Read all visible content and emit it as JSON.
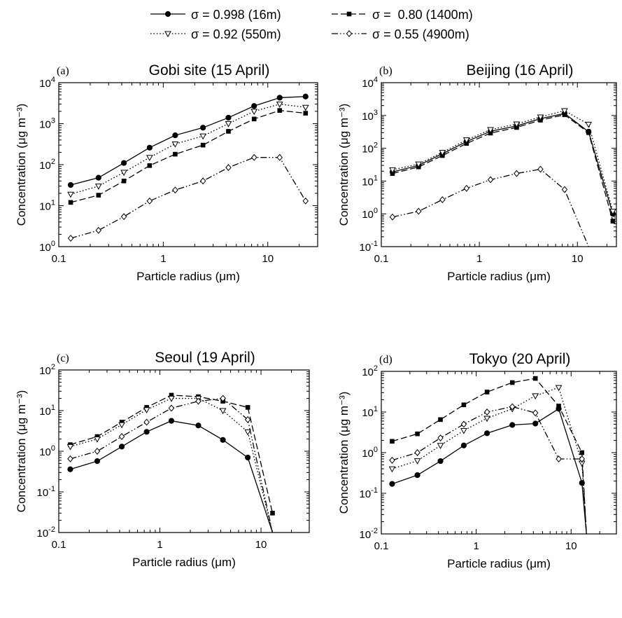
{
  "legend": {
    "entries": [
      {
        "series_index": 0,
        "label": "σ = 0.998 (16m)"
      },
      {
        "series_index": 1,
        "label": "σ =  0.80 (1400m)"
      },
      {
        "series_index": 2,
        "label": "σ = 0.92 (550m)"
      },
      {
        "series_index": 3,
        "label": "σ = 0.55 (4900m)"
      }
    ]
  },
  "series_styles": [
    {
      "marker": "circle-filled",
      "dash": "solid",
      "color": "#000000"
    },
    {
      "marker": "square-filled",
      "dash": "dashed",
      "color": "#000000"
    },
    {
      "marker": "triangle-down-open",
      "dash": "dotted",
      "color": "#000000"
    },
    {
      "marker": "diamond-open",
      "dash": "dash-dot-dot",
      "color": "#000000"
    }
  ],
  "chart_data": [
    {
      "panel_label": "(a)",
      "title": "Gobi site (15 April)",
      "type": "line",
      "xlabel": "Particle radius (μm)",
      "ylabel": "Concentration (μg m⁻³)",
      "xscale": "log",
      "yscale": "log",
      "xlim": [
        0.1,
        30
      ],
      "ylim": [
        1,
        10000
      ],
      "xticks": [
        {
          "v": 0.1,
          "label": "0.1"
        },
        {
          "v": 1,
          "label": "1"
        },
        {
          "v": 10,
          "label": "10"
        }
      ],
      "yticks": [
        {
          "v": 1,
          "base": "10",
          "exp": "0"
        },
        {
          "v": 10,
          "base": "10",
          "exp": "1"
        },
        {
          "v": 100,
          "base": "10",
          "exp": "2"
        },
        {
          "v": 1000,
          "base": "10",
          "exp": "3"
        },
        {
          "v": 10000,
          "base": "10",
          "exp": "4"
        }
      ],
      "x": [
        0.13,
        0.24,
        0.42,
        0.74,
        1.3,
        2.4,
        4.2,
        7.4,
        13,
        23
      ],
      "series": [
        {
          "values": [
            32,
            48,
            110,
            260,
            520,
            800,
            1400,
            2700,
            4300,
            4600
          ]
        },
        {
          "values": [
            12,
            18,
            40,
            95,
            180,
            300,
            650,
            1300,
            2100,
            1800
          ]
        },
        {
          "values": [
            19,
            30,
            65,
            150,
            320,
            500,
            1000,
            2000,
            3000,
            2500
          ]
        },
        {
          "values": [
            1.6,
            2.5,
            5.4,
            13,
            24,
            40,
            85,
            150,
            150,
            13
          ]
        }
      ]
    },
    {
      "panel_label": "(b)",
      "title": "Beijing (16 April)",
      "type": "line",
      "xlabel": "Particle radius (μm)",
      "ylabel": "Concentration (μg m⁻³)",
      "xscale": "log",
      "yscale": "log",
      "xlim": [
        0.1,
        25
      ],
      "ylim": [
        0.1,
        10000
      ],
      "xticks": [
        {
          "v": 0.1,
          "label": "0.1"
        },
        {
          "v": 1,
          "label": "1"
        },
        {
          "v": 10,
          "label": "10"
        }
      ],
      "yticks": [
        {
          "v": 0.1,
          "base": "10",
          "exp": "-1"
        },
        {
          "v": 1,
          "base": "10",
          "exp": "0"
        },
        {
          "v": 10,
          "base": "10",
          "exp": "1"
        },
        {
          "v": 100,
          "base": "10",
          "exp": "2"
        },
        {
          "v": 1000,
          "base": "10",
          "exp": "3"
        },
        {
          "v": 10000,
          "base": "10",
          "exp": "4"
        }
      ],
      "x": [
        0.13,
        0.24,
        0.42,
        0.74,
        1.3,
        2.4,
        4.2,
        7.4,
        13,
        23
      ],
      "series": [
        {
          "values": [
            19,
            30,
            68,
            160,
            330,
            480,
            800,
            1150,
            320,
            1.0
          ]
        },
        {
          "values": [
            17,
            27,
            60,
            140,
            290,
            430,
            720,
            1050,
            300,
            0.6
          ]
        },
        {
          "values": [
            22,
            33,
            75,
            180,
            370,
            550,
            900,
            1400,
            540,
            1.2
          ]
        },
        {
          "values": [
            0.8,
            1.2,
            2.7,
            6,
            11,
            17,
            23,
            5.5,
            0.1,
            null
          ]
        }
      ]
    },
    {
      "panel_label": "(c)",
      "title": "Seoul (19 April)",
      "type": "line",
      "xlabel": "Particle radius (μm)",
      "ylabel": "Concentration (μg m⁻³)",
      "xscale": "log",
      "yscale": "log",
      "xlim": [
        0.1,
        30
      ],
      "ylim": [
        0.01,
        100
      ],
      "xticks": [
        {
          "v": 0.1,
          "label": "0.1"
        },
        {
          "v": 1,
          "label": "1"
        },
        {
          "v": 10,
          "label": "10"
        }
      ],
      "yticks": [
        {
          "v": 0.01,
          "base": "10",
          "exp": "-2"
        },
        {
          "v": 0.1,
          "base": "10",
          "exp": "-1"
        },
        {
          "v": 1,
          "base": "10",
          "exp": "0"
        },
        {
          "v": 10,
          "base": "10",
          "exp": "1"
        },
        {
          "v": 100,
          "base": "10",
          "exp": "2"
        }
      ],
      "x": [
        0.13,
        0.24,
        0.42,
        0.74,
        1.3,
        2.4,
        4.2,
        7.4,
        13
      ],
      "series": [
        {
          "values": [
            0.36,
            0.57,
            1.3,
            3.0,
            5.6,
            4.3,
            1.9,
            0.7,
            0.01
          ]
        },
        {
          "values": [
            1.45,
            2.3,
            5.2,
            12,
            24,
            22,
            17,
            12,
            0.03
          ]
        },
        {
          "values": [
            1.3,
            2.0,
            4.5,
            10.5,
            20,
            20,
            10,
            3.0,
            0.01
          ]
        },
        {
          "values": [
            0.65,
            1.0,
            2.3,
            5.2,
            11.5,
            17,
            20,
            6,
            0.01
          ]
        }
      ]
    },
    {
      "panel_label": "(d)",
      "title": "Tokyo (20 April)",
      "type": "line",
      "xlabel": "Particle radius (μm)",
      "ylabel": "Concentration (μg m⁻³)",
      "xscale": "log",
      "yscale": "log",
      "xlim": [
        0.1,
        30
      ],
      "ylim": [
        0.01,
        100
      ],
      "xticks": [
        {
          "v": 0.1,
          "label": "0.1"
        },
        {
          "v": 1,
          "label": "1"
        },
        {
          "v": 10,
          "label": "10"
        }
      ],
      "yticks": [
        {
          "v": 0.01,
          "base": "10",
          "exp": "-2"
        },
        {
          "v": 0.1,
          "base": "10",
          "exp": "-1"
        },
        {
          "v": 1,
          "base": "10",
          "exp": "0"
        },
        {
          "v": 10,
          "base": "10",
          "exp": "1"
        },
        {
          "v": 100,
          "base": "10",
          "exp": "2"
        }
      ],
      "x": [
        0.13,
        0.24,
        0.42,
        0.74,
        1.3,
        2.4,
        4.2,
        7.4,
        13,
        14.5
      ],
      "series": [
        {
          "values": [
            0.17,
            0.28,
            0.62,
            1.5,
            3.0,
            4.8,
            5.2,
            12,
            0.18,
            0.01
          ]
        },
        {
          "values": [
            1.9,
            2.9,
            6.5,
            15,
            31,
            53,
            67,
            14,
            1.0,
            0.01
          ]
        },
        {
          "values": [
            0.4,
            0.63,
            1.5,
            3.5,
            7.0,
            12,
            25,
            40,
            0.55,
            0.01
          ]
        },
        {
          "values": [
            0.65,
            1.0,
            2.3,
            5.0,
            10,
            13.5,
            9.5,
            0.7,
            0.7,
            0.01
          ]
        }
      ]
    }
  ]
}
